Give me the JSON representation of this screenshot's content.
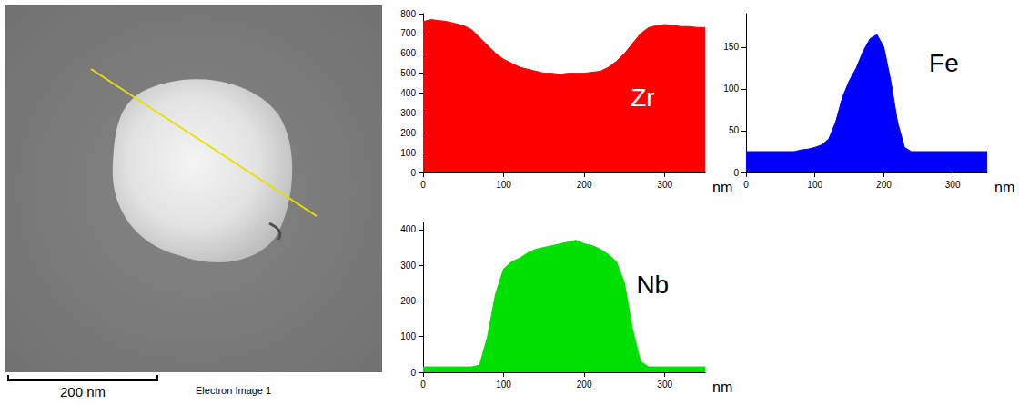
{
  "image": {
    "scale_bar": "200 nm",
    "caption": "Electron Image 1"
  },
  "chart_data": [
    {
      "type": "area",
      "title": "Zr",
      "color": "#ff0000",
      "xlabel": "nm",
      "x": [
        0,
        10,
        20,
        30,
        40,
        50,
        60,
        70,
        80,
        90,
        100,
        110,
        120,
        130,
        140,
        150,
        160,
        170,
        180,
        190,
        200,
        210,
        220,
        230,
        240,
        250,
        260,
        270,
        280,
        290,
        300,
        310,
        320,
        330,
        340,
        350
      ],
      "values": [
        760,
        770,
        765,
        760,
        750,
        740,
        720,
        680,
        640,
        600,
        570,
        550,
        530,
        520,
        510,
        500,
        500,
        495,
        500,
        500,
        500,
        505,
        510,
        530,
        560,
        600,
        650,
        700,
        730,
        740,
        745,
        740,
        735,
        735,
        730,
        730
      ],
      "xlim": [
        0,
        350
      ],
      "xticks": [
        0,
        100,
        200,
        300
      ],
      "ylim": [
        0,
        800
      ],
      "yticks": [
        0,
        100,
        200,
        300,
        400,
        500,
        600,
        700,
        800
      ],
      "grid": false
    },
    {
      "type": "area",
      "title": "Fe",
      "color": "#0000ff",
      "xlabel": "nm",
      "x": [
        0,
        10,
        20,
        30,
        40,
        50,
        60,
        70,
        80,
        90,
        100,
        110,
        120,
        130,
        140,
        150,
        160,
        170,
        180,
        190,
        200,
        210,
        220,
        230,
        240,
        250,
        260,
        270,
        280,
        290,
        300,
        310,
        320,
        330,
        340,
        350
      ],
      "values": [
        25,
        25,
        25,
        25,
        25,
        25,
        25,
        25,
        27,
        28,
        30,
        33,
        40,
        60,
        90,
        110,
        125,
        145,
        160,
        165,
        150,
        110,
        60,
        30,
        25,
        25,
        25,
        25,
        25,
        25,
        25,
        25,
        25,
        25,
        25,
        25
      ],
      "xlim": [
        0,
        350
      ],
      "xticks": [
        0,
        100,
        200,
        300
      ],
      "ylim": [
        0,
        190
      ],
      "yticks": [
        0,
        50,
        100,
        150
      ],
      "grid": false
    },
    {
      "type": "area",
      "title": "Nb",
      "color": "#00e000",
      "xlabel": "nm",
      "x": [
        0,
        10,
        20,
        30,
        40,
        50,
        60,
        70,
        80,
        90,
        100,
        110,
        120,
        130,
        140,
        150,
        160,
        170,
        180,
        190,
        200,
        210,
        220,
        230,
        240,
        250,
        260,
        270,
        280,
        290,
        300,
        310,
        320,
        330,
        340,
        350
      ],
      "values": [
        15,
        15,
        15,
        15,
        15,
        15,
        15,
        20,
        100,
        220,
        290,
        310,
        320,
        335,
        345,
        350,
        355,
        360,
        365,
        370,
        360,
        355,
        345,
        330,
        310,
        250,
        120,
        30,
        15,
        15,
        15,
        15,
        15,
        15,
        15,
        15
      ],
      "xlim": [
        0,
        350
      ],
      "xticks": [
        0,
        100,
        200,
        300
      ],
      "ylim": [
        0,
        420
      ],
      "yticks": [
        0,
        100,
        200,
        300,
        400
      ],
      "grid": false
    }
  ]
}
